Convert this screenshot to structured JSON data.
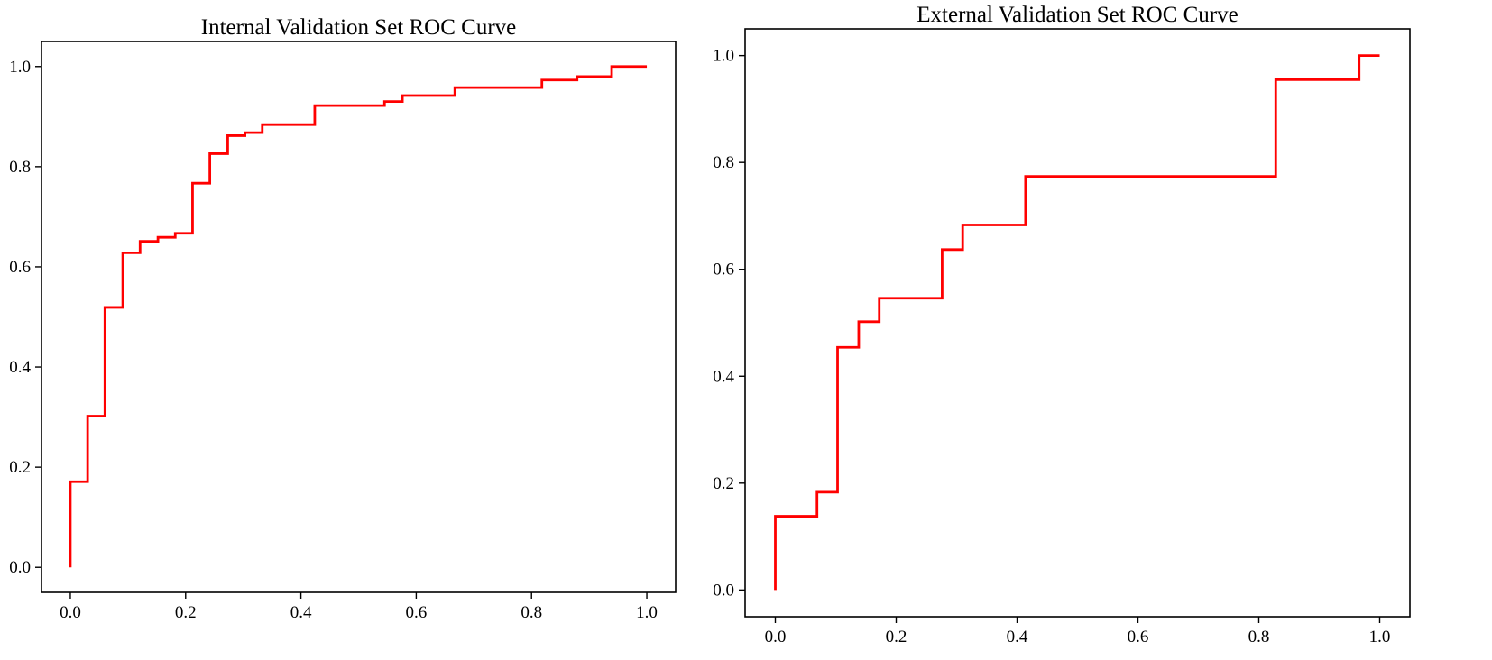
{
  "chart_data": [
    {
      "type": "line",
      "title": "Internal Validation Set ROC Curve",
      "xlabel": "",
      "ylabel": "",
      "xlim": [
        -0.05,
        1.05
      ],
      "ylim": [
        -0.05,
        1.05
      ],
      "xticks": [
        "0.0",
        "0.2",
        "0.4",
        "0.6",
        "0.8",
        "1.0"
      ],
      "yticks": [
        "0.0",
        "0.2",
        "0.4",
        "0.6",
        "0.8",
        "1.0"
      ],
      "grid": false,
      "line_style": "step",
      "series": [
        {
          "color": "#ff0000",
          "x": [
            0.0,
            0.0,
            0.03,
            0.03,
            0.06,
            0.06,
            0.091,
            0.091,
            0.121,
            0.121,
            0.152,
            0.152,
            0.182,
            0.182,
            0.212,
            0.212,
            0.242,
            0.242,
            0.273,
            0.273,
            0.303,
            0.303,
            0.333,
            0.333,
            0.424,
            0.424,
            0.545,
            0.545,
            0.576,
            0.576,
            0.667,
            0.667,
            0.818,
            0.818,
            0.879,
            0.879,
            0.939,
            0.939,
            1.0
          ],
          "y": [
            0.0,
            0.171,
            0.171,
            0.302,
            0.302,
            0.519,
            0.519,
            0.628,
            0.628,
            0.651,
            0.651,
            0.659,
            0.659,
            0.667,
            0.667,
            0.767,
            0.767,
            0.826,
            0.826,
            0.862,
            0.862,
            0.868,
            0.868,
            0.884,
            0.884,
            0.922,
            0.922,
            0.93,
            0.93,
            0.942,
            0.942,
            0.958,
            0.958,
            0.973,
            0.973,
            0.98,
            0.98,
            1.0,
            1.0
          ]
        }
      ]
    },
    {
      "type": "line",
      "title": "External Validation Set ROC Curve",
      "xlabel": "",
      "ylabel": "",
      "xlim": [
        -0.05,
        1.05
      ],
      "ylim": [
        -0.05,
        1.05
      ],
      "xticks": [
        "0.0",
        "0.2",
        "0.4",
        "0.6",
        "0.8",
        "1.0"
      ],
      "yticks": [
        "0.0",
        "0.2",
        "0.4",
        "0.6",
        "0.8",
        "1.0"
      ],
      "grid": false,
      "line_style": "step",
      "series": [
        {
          "color": "#ff0000",
          "x": [
            0.0,
            0.0,
            0.069,
            0.069,
            0.103,
            0.103,
            0.138,
            0.138,
            0.172,
            0.172,
            0.276,
            0.276,
            0.31,
            0.31,
            0.414,
            0.414,
            0.828,
            0.828,
            0.966,
            0.966,
            1.0
          ],
          "y": [
            0.0,
            0.138,
            0.138,
            0.183,
            0.183,
            0.454,
            0.454,
            0.502,
            0.502,
            0.546,
            0.546,
            0.637,
            0.637,
            0.683,
            0.683,
            0.774,
            0.774,
            0.955,
            0.955,
            1.0,
            1.0
          ]
        }
      ]
    }
  ]
}
